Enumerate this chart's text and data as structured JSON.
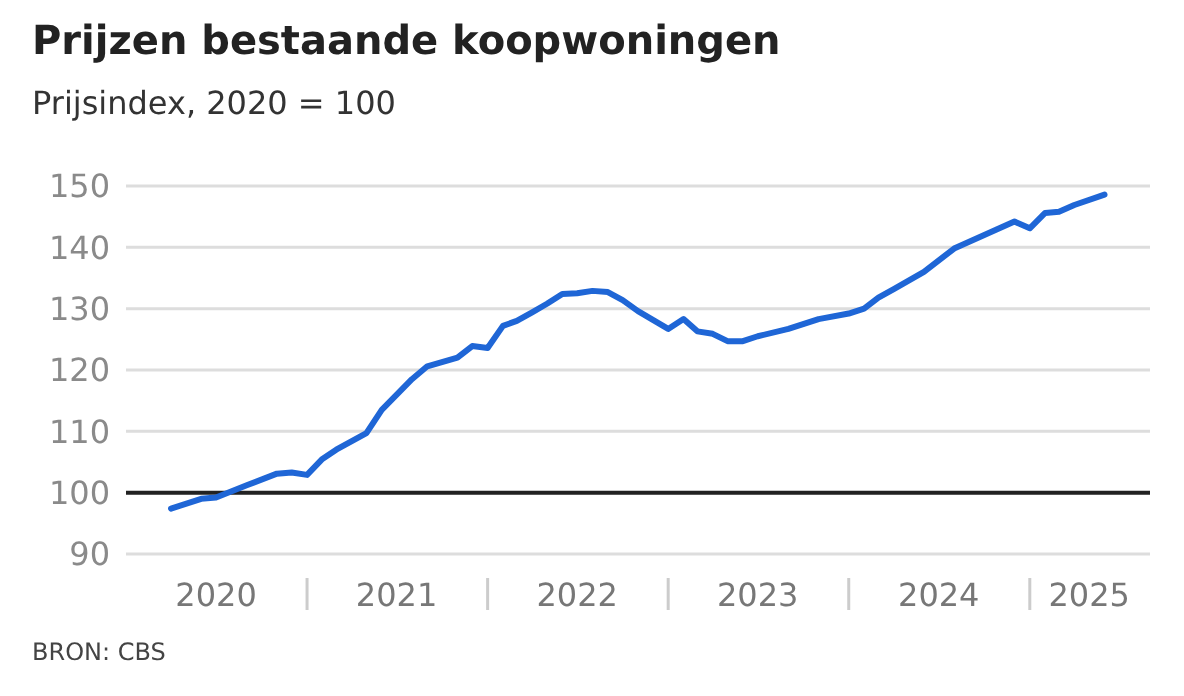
{
  "chart_data": {
    "type": "line",
    "title": "Prijzen bestaande koopwoningen",
    "subtitle": "Prijsindex, 2020 = 100",
    "annotations": [
      "BRON: CBS"
    ],
    "x": [
      "2020-04",
      "2020-06",
      "2020-07",
      "2020-09",
      "2020-11",
      "2020-12",
      "2021-01",
      "2021-02",
      "2021-03",
      "2021-05",
      "2021-06",
      "2021-08",
      "2021-09",
      "2021-11",
      "2021-12",
      "2022-01",
      "2022-02",
      "2022-03",
      "2022-04",
      "2022-05",
      "2022-06",
      "2022-07",
      "2022-08",
      "2022-09",
      "2022-10",
      "2022-11",
      "2023-01",
      "2023-02",
      "2023-03",
      "2023-04",
      "2023-05",
      "2023-06",
      "2023-07",
      "2023-09",
      "2023-11",
      "2024-01",
      "2024-02",
      "2024-03",
      "2024-04",
      "2024-06",
      "2024-08",
      "2024-10",
      "2024-12",
      "2025-01",
      "2025-02",
      "2025-03",
      "2025-04",
      "2025-06"
    ],
    "series": [
      {
        "color": "#1f66d6",
        "values": [
          97.4,
          99.0,
          99.2,
          101.2,
          103.1,
          103.3,
          102.9,
          105.5,
          107.0,
          109.7,
          113.5,
          118.5,
          120.6,
          122.0,
          123.9,
          123.6,
          127.2,
          128.0,
          129.4,
          130.8,
          132.4,
          132.5,
          132.9,
          132.7,
          131.4,
          129.6,
          126.7,
          128.3,
          126.3,
          125.9,
          124.7,
          124.7,
          125.5,
          126.7,
          128.3,
          129.2,
          130.0,
          131.8,
          133.2,
          136.0,
          139.8,
          142.0,
          144.2,
          143.1,
          145.6,
          145.8,
          146.9,
          148.6
        ]
      }
    ],
    "xlim": [
      "2020-01",
      "2025-09"
    ],
    "xticks": [
      {
        "value": "2020-07",
        "label": "2020"
      },
      {
        "value": "2021-01",
        "label": null
      },
      {
        "value": "2021-07",
        "label": "2021"
      },
      {
        "value": "2022-01",
        "label": null
      },
      {
        "value": "2022-07",
        "label": "2022"
      },
      {
        "value": "2023-01",
        "label": null
      },
      {
        "value": "2023-07",
        "label": "2023"
      },
      {
        "value": "2024-01",
        "label": null
      },
      {
        "value": "2024-07",
        "label": "2024"
      },
      {
        "value": "2025-01",
        "label": null
      },
      {
        "value": "2025-05",
        "label": "2025"
      }
    ],
    "ylim": [
      90,
      150
    ],
    "yticks": [
      90,
      100,
      110,
      120,
      130,
      140,
      150
    ],
    "grid": "y",
    "marker": "none",
    "line_style": "solid",
    "ref_lines": [
      {
        "axis": "y",
        "value": 100,
        "label": null,
        "color": "#222222"
      }
    ]
  }
}
